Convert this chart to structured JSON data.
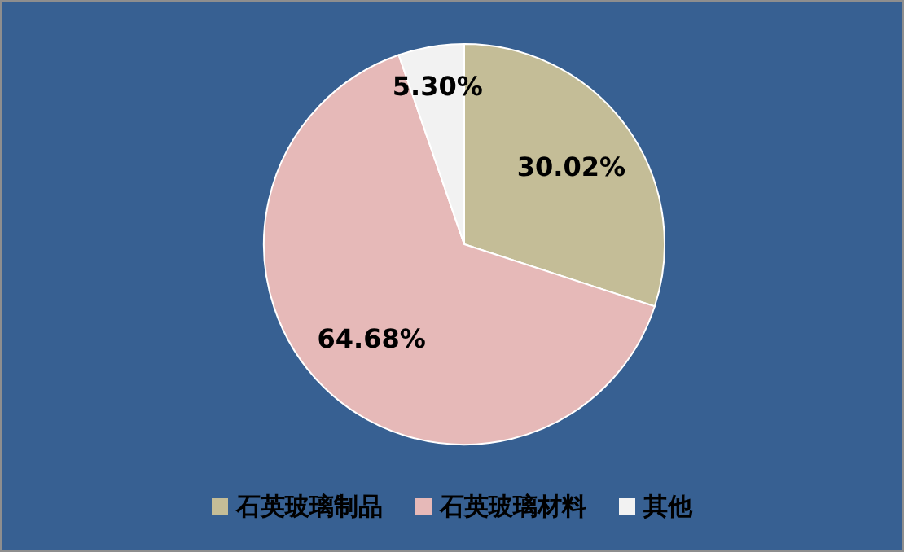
{
  "chart_data": {
    "type": "pie",
    "categories": [
      "石英玻璃制品",
      "石英玻璃材料",
      "其他"
    ],
    "values": [
      30.02,
      64.68,
      5.3
    ],
    "colors": [
      "#c4bd97",
      "#e6b9b8",
      "#f2f2f2"
    ],
    "value_labels": [
      "30.02%",
      "64.68%",
      "5.30%"
    ],
    "legend": "bottom"
  }
}
